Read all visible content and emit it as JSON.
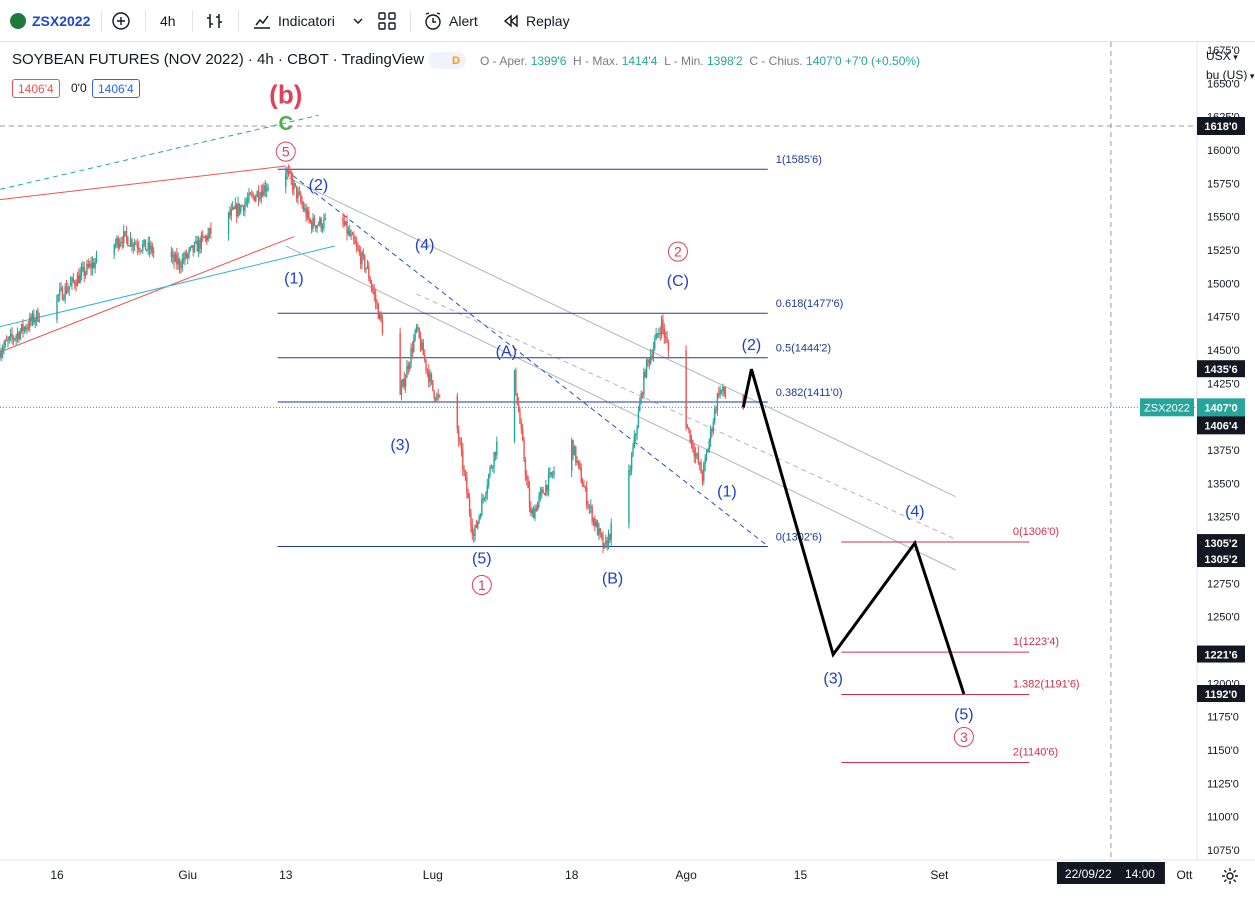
{
  "toolbar": {
    "symbol": "ZSX2022",
    "interval": "4h",
    "indicators": "Indicatori",
    "alert": "Alert",
    "replay": "Replay"
  },
  "legend": {
    "title": "SOYBEAN FUTURES (NOV 2022) · 4h · CBOT · TradingView",
    "badge": "D",
    "o_label": "O - Aper.",
    "o": "1399'6",
    "h_label": "H - Max.",
    "h": "1414'4",
    "l_label": "L - Min.",
    "l": "1398'2",
    "c_label": "C - Chius.",
    "c": "1407'0",
    "change": "+7'0 (+0.50%)",
    "bid": "1406'4",
    "spread": "0'0",
    "ask": "1406'4"
  },
  "axis_header": {
    "currency": "USX",
    "unit": "bu (US)"
  },
  "colors": {
    "up": "#26a69a",
    "down": "#ef5350",
    "wave_blue": "#1e40c8",
    "wave_red": "#e0405a",
    "fib_blue": "#1e3a9a",
    "fib_red": "#d0304a",
    "projection": "#000000"
  },
  "chart_data": {
    "type": "candlestick",
    "title": "SOYBEAN FUTURES (NOV 2022)",
    "ylim": [
      10675,
      16810
    ],
    "y_ticks": [
      "16750",
      "16500",
      "16250",
      "16000",
      "15750",
      "15500",
      "15250",
      "15000",
      "14750",
      "14500",
      "14250",
      "14000",
      "13750",
      "13500",
      "13250",
      "13000",
      "12750",
      "12500",
      "12250",
      "12000",
      "11750",
      "11500",
      "11250",
      "11000",
      "10750"
    ],
    "y_tick_values": [
      16750,
      16500,
      16250,
      16000,
      15750,
      15500,
      15250,
      15000,
      14750,
      14500,
      14250,
      14000,
      13750,
      13500,
      13250,
      13000,
      12750,
      12500,
      12250,
      12000,
      11750,
      11500,
      11250,
      11000,
      10750
    ],
    "x_ticks": [
      "16",
      "Giu",
      "13",
      "Lug",
      "18",
      "Ago",
      "15",
      "Set",
      "Ott"
    ],
    "x_tick_dates": [
      "2022-05-16",
      "2022-06-01",
      "2022-06-13",
      "2022-07-01",
      "2022-07-18",
      "2022-08-01",
      "2022-08-15",
      "2022-09-01",
      "2022-10-01"
    ],
    "crosshair": {
      "date_label": "22/09/22",
      "time_label": "14:00",
      "date": "2022-09-22",
      "price": 16180,
      "price_label": "1618'0"
    },
    "last_price": {
      "symbol": "ZSX2022",
      "label": "1407'0",
      "value": 14070,
      "bid_label": "1406'4"
    },
    "price_labels": [
      {
        "label": "1435'6",
        "value": 14356
      },
      {
        "label": "1305'2",
        "value": 13052
      },
      {
        "label": "1305'2",
        "value": 13052
      },
      {
        "label": "1221'6",
        "value": 12216
      },
      {
        "label": "1192'0",
        "value": 11920
      }
    ],
    "ohlc_path": [
      [
        "2022-05-09",
        14500
      ],
      [
        "2022-05-17",
        14950
      ],
      [
        "2022-05-24",
        15350
      ],
      [
        "2022-05-31",
        15150
      ],
      [
        "2022-06-05",
        15450
      ],
      [
        "2022-06-10",
        15700
      ],
      [
        "2022-06-13",
        15850
      ],
      [
        "2022-06-16",
        15450
      ],
      [
        "2022-06-20",
        15450
      ],
      [
        "2022-06-23",
        15100
      ],
      [
        "2022-06-27",
        14150
      ],
      [
        "2022-06-29",
        14650
      ],
      [
        "2022-07-01",
        14200
      ],
      [
        "2022-07-04",
        13900
      ],
      [
        "2022-07-06",
        13100
      ],
      [
        "2022-07-08",
        13600
      ],
      [
        "2022-07-11",
        14300
      ],
      [
        "2022-07-13",
        13250
      ],
      [
        "2022-07-15",
        13500
      ],
      [
        "2022-07-18",
        13800
      ],
      [
        "2022-07-20",
        13350
      ],
      [
        "2022-07-22",
        13000
      ],
      [
        "2022-07-25",
        13550
      ],
      [
        "2022-07-27",
        14350
      ],
      [
        "2022-07-29",
        14700
      ],
      [
        "2022-08-01",
        13950
      ],
      [
        "2022-08-03",
        13550
      ],
      [
        "2022-08-05",
        14200
      ],
      [
        "2022-08-08",
        14070
      ]
    ],
    "fib_retracement": [
      {
        "ratio": "1",
        "label": "1(1585'6)",
        "value": 15856
      },
      {
        "ratio": "0.618",
        "label": "0.618(1477'6)",
        "value": 14776
      },
      {
        "ratio": "0.5",
        "label": "0.5(1444'2)",
        "value": 14442
      },
      {
        "ratio": "0.382",
        "label": "0.382(1411'0)",
        "value": 14110
      },
      {
        "ratio": "0",
        "label": "0(1302'6)",
        "value": 13026
      }
    ],
    "fib_extension": [
      {
        "ratio": "0",
        "label": "0(1306'0)",
        "value": 13060
      },
      {
        "ratio": "1",
        "label": "1(1223'4)",
        "value": 12234
      },
      {
        "ratio": "1.382",
        "label": "1.382(1191'6)",
        "value": 11916
      },
      {
        "ratio": "2",
        "label": "2(1140'6)",
        "value": 11406
      }
    ],
    "projection_path": [
      [
        "2022-08-08",
        14070
      ],
      [
        "2022-08-09",
        14356
      ],
      [
        "2022-08-19",
        12216
      ],
      [
        "2022-08-29",
        13052
      ],
      [
        "2022-09-04",
        11920
      ]
    ],
    "wave_labels": [
      {
        "text": "(b)",
        "date": "2022-06-13",
        "price": 16350,
        "color": "red",
        "style": "large"
      },
      {
        "text": "C",
        "date": "2022-06-13",
        "price": 16150,
        "color": "green",
        "style": "large"
      },
      {
        "text": "5",
        "date": "2022-06-13",
        "price": 15950,
        "color": "red",
        "style": "circle"
      },
      {
        "text": "(2)",
        "date": "2022-06-17",
        "price": 15700,
        "color": "blue"
      },
      {
        "text": "(1)",
        "date": "2022-06-14",
        "price": 15000,
        "color": "blue"
      },
      {
        "text": "(4)",
        "date": "2022-06-30",
        "price": 15250,
        "color": "blue"
      },
      {
        "text": "(3)",
        "date": "2022-06-27",
        "price": 13750,
        "color": "blue"
      },
      {
        "text": "(A)",
        "date": "2022-07-10",
        "price": 14450,
        "color": "blue"
      },
      {
        "text": "(5)",
        "date": "2022-07-07",
        "price": 12900,
        "color": "blue"
      },
      {
        "text": "1",
        "date": "2022-07-07",
        "price": 12700,
        "color": "red",
        "style": "circle"
      },
      {
        "text": "(B)",
        "date": "2022-07-23",
        "price": 12750,
        "color": "blue"
      },
      {
        "text": "2",
        "date": "2022-07-31",
        "price": 15200,
        "color": "red",
        "style": "circle"
      },
      {
        "text": "(C)",
        "date": "2022-07-31",
        "price": 14980,
        "color": "blue"
      },
      {
        "text": "(2)",
        "date": "2022-08-09",
        "price": 14500,
        "color": "blue"
      },
      {
        "text": "(1)",
        "date": "2022-08-06",
        "price": 13400,
        "color": "blue"
      },
      {
        "text": "(4)",
        "date": "2022-08-29",
        "price": 13250,
        "color": "blue"
      },
      {
        "text": "(3)",
        "date": "2022-08-19",
        "price": 12000,
        "color": "blue"
      },
      {
        "text": "(5)",
        "date": "2022-09-04",
        "price": 11730,
        "color": "blue"
      },
      {
        "text": "3",
        "date": "2022-09-04",
        "price": 11560,
        "color": "red",
        "style": "circle"
      }
    ]
  }
}
